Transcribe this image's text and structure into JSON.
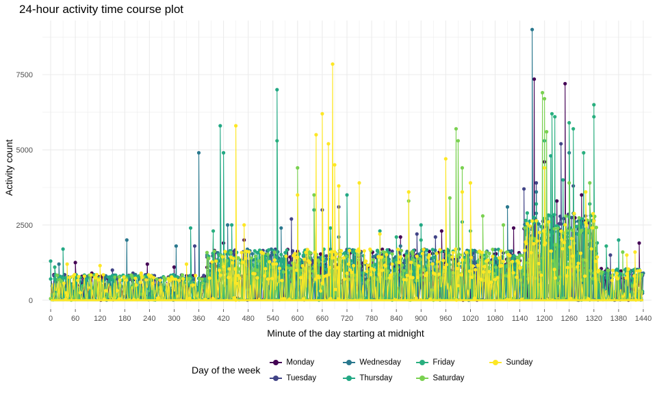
{
  "chart_data": {
    "type": "line",
    "title": "24-hour activity time course plot",
    "xlabel": "Minute of the day starting at midnight",
    "ylabel": "Activity count",
    "xlim": [
      -20,
      1460
    ],
    "ylim": [
      -300,
      9300
    ],
    "x_ticks": [
      0,
      60,
      120,
      180,
      240,
      300,
      360,
      420,
      480,
      540,
      600,
      660,
      720,
      780,
      840,
      900,
      960,
      1020,
      1080,
      1140,
      1200,
      1260,
      1320,
      1380,
      1440
    ],
    "y_ticks": [
      0,
      2500,
      5000,
      7500
    ],
    "y_tick_labels": [
      "0",
      "2500",
      "5000",
      "7500"
    ],
    "grid": true,
    "legend_title": "Day of the week",
    "legend_position": "bottom",
    "series": [
      {
        "name": "Monday",
        "color": "#440154",
        "peaks": [
          [
            60,
            1250
          ],
          [
            100,
            900
          ],
          [
            235,
            1200
          ],
          [
            300,
            1100
          ],
          [
            420,
            1900
          ],
          [
            470,
            2000
          ],
          [
            850,
            2100
          ],
          [
            950,
            2300
          ],
          [
            1125,
            2400
          ],
          [
            1175,
            7350
          ],
          [
            1200,
            4600
          ],
          [
            1230,
            3300
          ],
          [
            1250,
            7200
          ],
          [
            1290,
            3500
          ],
          [
            1430,
            1900
          ]
        ]
      },
      {
        "name": "Tuesday",
        "color": "#414487",
        "peaks": [
          [
            150,
            1000
          ],
          [
            200,
            900
          ],
          [
            350,
            1800
          ],
          [
            585,
            2700
          ],
          [
            660,
            3000
          ],
          [
            700,
            3100
          ],
          [
            890,
            2200
          ],
          [
            935,
            2100
          ],
          [
            1150,
            3700
          ],
          [
            1180,
            3900
          ],
          [
            1240,
            5200
          ],
          [
            1270,
            3800
          ],
          [
            1300,
            2800
          ],
          [
            1360,
            1500
          ]
        ]
      },
      {
        "name": "Wednesday",
        "color": "#2a788e",
        "peaks": [
          [
            20,
            1200
          ],
          [
            185,
            2000
          ],
          [
            305,
            1800
          ],
          [
            360,
            4900
          ],
          [
            380,
            1500
          ],
          [
            430,
            2500
          ],
          [
            560,
            2400
          ],
          [
            700,
            2100
          ],
          [
            850,
            1800
          ],
          [
            1110,
            3100
          ],
          [
            1170,
            9000
          ],
          [
            1180,
            3600
          ],
          [
            1260,
            4900
          ],
          [
            1290,
            2700
          ],
          [
            1440,
            900
          ]
        ]
      },
      {
        "name": "Thursday",
        "color": "#22a884",
        "peaks": [
          [
            0,
            1300
          ],
          [
            30,
            1700
          ],
          [
            340,
            2400
          ],
          [
            412,
            5800
          ],
          [
            420,
            4900
          ],
          [
            440,
            2500
          ],
          [
            550,
            7000
          ],
          [
            640,
            3000
          ],
          [
            720,
            3500
          ],
          [
            800,
            2300
          ],
          [
            900,
            2500
          ],
          [
            1000,
            2600
          ],
          [
            1180,
            3200
          ],
          [
            1215,
            4800
          ],
          [
            1245,
            4000
          ],
          [
            1310,
            3200
          ],
          [
            1380,
            2000
          ]
        ]
      },
      {
        "name": "Friday",
        "color": "#29af7f",
        "peaks": [
          [
            10,
            1100
          ],
          [
            60,
            800
          ],
          [
            395,
            2300
          ],
          [
            550,
            5300
          ],
          [
            680,
            2400
          ],
          [
            840,
            2100
          ],
          [
            900,
            2000
          ],
          [
            1020,
            2300
          ],
          [
            1200,
            5300
          ],
          [
            1218,
            6200
          ],
          [
            1225,
            6100
          ],
          [
            1260,
            5900
          ],
          [
            1270,
            5700
          ],
          [
            1295,
            4900
          ],
          [
            1320,
            6500
          ],
          [
            1320,
            6100
          ],
          [
            1350,
            1800
          ]
        ]
      },
      {
        "name": "Saturday",
        "color": "#7ad151",
        "peaks": [
          [
            110,
            700
          ],
          [
            420,
            1200
          ],
          [
            600,
            4400
          ],
          [
            640,
            3500
          ],
          [
            870,
            3300
          ],
          [
            970,
            3400
          ],
          [
            985,
            5700
          ],
          [
            990,
            5300
          ],
          [
            1000,
            4400
          ],
          [
            1050,
            2800
          ],
          [
            1100,
            2500
          ],
          [
            1195,
            6900
          ],
          [
            1200,
            6700
          ],
          [
            1205,
            5600
          ],
          [
            1260,
            3900
          ],
          [
            1310,
            3900
          ],
          [
            1390,
            1600
          ]
        ]
      },
      {
        "name": "Sunday",
        "color": "#fde725",
        "peaks": [
          [
            40,
            1200
          ],
          [
            120,
            1150
          ],
          [
            220,
            900
          ],
          [
            330,
            1200
          ],
          [
            450,
            5800
          ],
          [
            470,
            2500
          ],
          [
            600,
            3500
          ],
          [
            645,
            5500
          ],
          [
            660,
            6200
          ],
          [
            675,
            5200
          ],
          [
            685,
            7850
          ],
          [
            690,
            4500
          ],
          [
            700,
            3800
          ],
          [
            750,
            3900
          ],
          [
            800,
            2200
          ],
          [
            870,
            3600
          ],
          [
            960,
            4700
          ],
          [
            1000,
            3600
          ],
          [
            1020,
            3900
          ],
          [
            1200,
            4400
          ],
          [
            1300,
            3600
          ],
          [
            1400,
            1500
          ],
          [
            1420,
            1600
          ]
        ]
      }
    ]
  }
}
